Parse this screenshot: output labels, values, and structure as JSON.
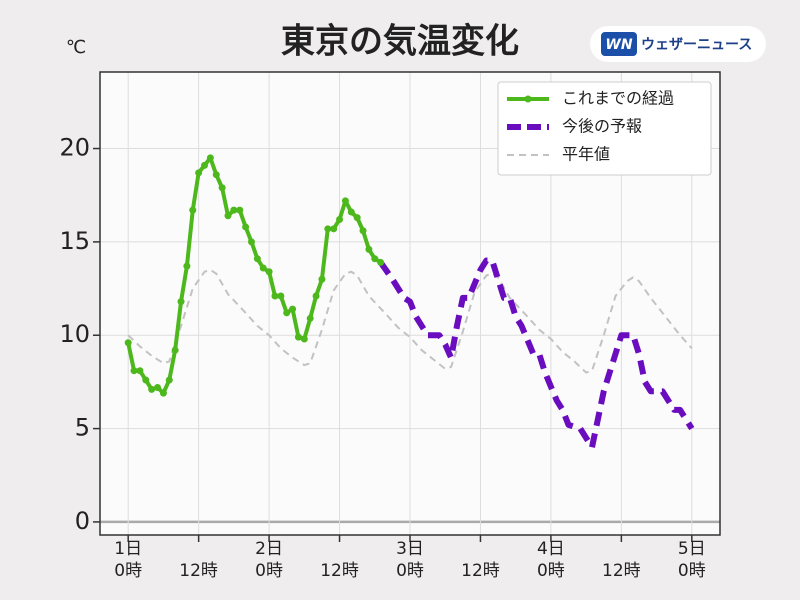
{
  "chart_data": {
    "type": "line",
    "title": "東京の気温変化",
    "y_unit": "℃",
    "logo": {
      "badge": "WN",
      "text": "ウェザーニュース"
    },
    "xlim": [
      -4.8,
      100.8
    ],
    "xticks": [
      {
        "value": 0,
        "label": "1日\n0時"
      },
      {
        "value": 12,
        "label": "12時"
      },
      {
        "value": 24,
        "label": "2日\n0時"
      },
      {
        "value": 36,
        "label": "12時"
      },
      {
        "value": 48,
        "label": "3日\n0時"
      },
      {
        "value": 60,
        "label": "12時"
      },
      {
        "value": 72,
        "label": "4日\n0時"
      },
      {
        "value": 84,
        "label": "12時"
      },
      {
        "value": 96,
        "label": "5日\n0時"
      }
    ],
    "ylim": [
      -0.7,
      24.1
    ],
    "yticks": [
      0,
      5,
      10,
      15,
      20
    ],
    "grid": true,
    "legend": "upper right",
    "series": [
      {
        "name": "これまでの経過",
        "color": "#4cb81c",
        "style": "solid-markers",
        "x": [
          0,
          1,
          2,
          3,
          4,
          5,
          6,
          7,
          8,
          9,
          10,
          11,
          12,
          13,
          14,
          15,
          16,
          17,
          18,
          19,
          20,
          21,
          22,
          23,
          24,
          25,
          26,
          27,
          28,
          29,
          30,
          31,
          32,
          33,
          34,
          35,
          36,
          37,
          38,
          39,
          40,
          41,
          42,
          43
        ],
        "values": [
          9.6,
          8.1,
          8.1,
          7.6,
          7.1,
          7.2,
          6.9,
          7.6,
          9.2,
          11.8,
          13.7,
          16.7,
          18.7,
          19.1,
          19.5,
          18.6,
          17.9,
          16.4,
          16.7,
          16.7,
          15.8,
          15.0,
          14.1,
          13.6,
          13.4,
          12.1,
          12.1,
          11.2,
          11.4,
          9.9,
          9.8,
          10.9,
          12.1,
          13.0,
          15.7,
          15.7,
          16.2,
          17.2,
          16.6,
          16.3,
          15.6,
          14.6,
          14.1,
          13.9
        ]
      },
      {
        "name": "今後の予報",
        "color": "#6a0dbf",
        "style": "dashed-thick",
        "x": [
          43,
          45,
          47,
          48,
          49,
          51,
          53,
          54,
          55,
          56,
          57,
          58,
          60,
          61,
          62,
          63,
          64,
          65,
          66,
          67,
          69,
          70,
          71,
          73,
          74,
          75,
          77,
          78,
          79,
          80,
          81,
          83,
          84,
          86,
          87,
          88,
          89,
          91,
          92,
          93,
          94,
          96
        ],
        "values": [
          13.9,
          13,
          12,
          11.8,
          11,
          10,
          10,
          9.5,
          8.8,
          10.5,
          12,
          12,
          13.5,
          14,
          14,
          13,
          12,
          12,
          11,
          10.5,
          9,
          9,
          8,
          6.5,
          6,
          5.2,
          5,
          4.5,
          4,
          5.5,
          7,
          9,
          10,
          10,
          9,
          7.5,
          7,
          7,
          6.5,
          6,
          6,
          5
        ]
      },
      {
        "name": "平年値",
        "color": "#c2c2c2",
        "style": "dashed-thin",
        "x": [
          0,
          2,
          4,
          6,
          7,
          9,
          11,
          13,
          14,
          15,
          17,
          20,
          22,
          24,
          26,
          28,
          30,
          31,
          33,
          35,
          37,
          38,
          39,
          41,
          44,
          46,
          48,
          50,
          52,
          54,
          55,
          57,
          59,
          61,
          62,
          63,
          65,
          68,
          70,
          72,
          74,
          76,
          78,
          79,
          81,
          83,
          85,
          86,
          87,
          89,
          92,
          94,
          96
        ],
        "values": [
          10,
          9.4,
          8.9,
          8.5,
          8.6,
          10.5,
          12.5,
          13.4,
          13.5,
          13.3,
          12.2,
          11.2,
          10.5,
          10,
          9.3,
          8.8,
          8.4,
          8.5,
          10.3,
          12.4,
          13.3,
          13.4,
          13.2,
          12.1,
          11.1,
          10.4,
          9.9,
          9.2,
          8.7,
          8.2,
          8.3,
          10.2,
          12.3,
          13.2,
          13.3,
          13.1,
          12,
          11,
          10.3,
          9.8,
          9.1,
          8.6,
          8,
          8.1,
          10,
          12.1,
          12.9,
          13.1,
          12.9,
          12,
          10.8,
          10,
          9.3
        ]
      }
    ]
  }
}
